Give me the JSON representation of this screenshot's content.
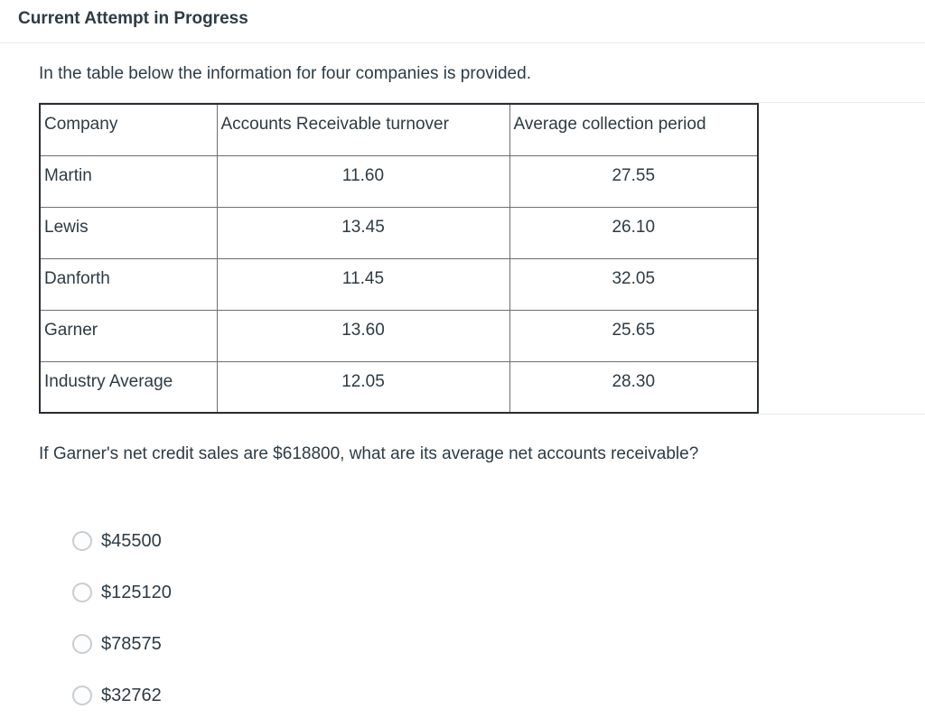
{
  "page": {
    "title": "Current Attempt in Progress",
    "intro": "In the table below the information for four companies is provided.",
    "question": "If Garner's net credit sales are $618800, what are its average net accounts receivable?"
  },
  "table": {
    "headers": [
      "Company",
      "Accounts Receivable turnover",
      "Average collection period"
    ],
    "rows": [
      [
        "Martin",
        "11.60",
        "27.55"
      ],
      [
        "Lewis",
        "13.45",
        "26.10"
      ],
      [
        "Danforth",
        "11.45",
        "32.05"
      ],
      [
        "Garner",
        "13.60",
        "25.65"
      ],
      [
        "Industry Average",
        "12.05",
        "28.30"
      ]
    ]
  },
  "options": [
    "$45500",
    "$125120",
    "$78575",
    "$32762"
  ],
  "colors": {
    "text": "#2d3b45",
    "table_outer_border": "#2b2f33",
    "table_inner_border": "#6e6e6e",
    "light_rule": "#e8eaec",
    "radio_border": "#c8cdd1"
  }
}
